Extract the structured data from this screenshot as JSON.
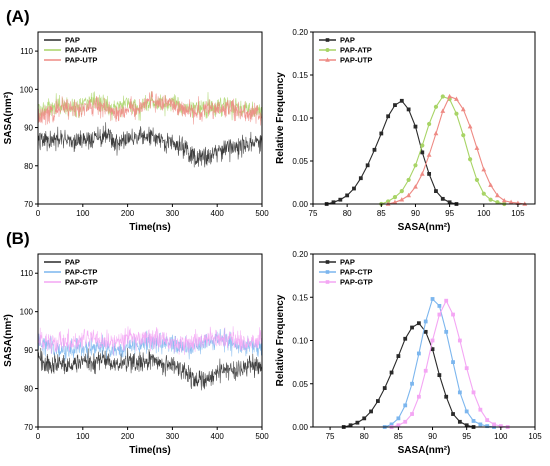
{
  "panel_labels": [
    "(A)",
    "(B)"
  ],
  "colors": {
    "PAP": "#2a2a2a",
    "PAP-ATP": "#a8d466",
    "PAP-UTP": "#ee8a84",
    "PAP-CTP": "#7cb6ee",
    "PAP-GTP": "#f4a6f4"
  },
  "chart_data": [
    {
      "id": "A-time",
      "panel": "(A)",
      "type": "line",
      "xlabel": "Time(ns)",
      "ylabel": "SASA(nm²)",
      "xlim": [
        0,
        500
      ],
      "ylim": [
        70,
        115
      ],
      "xticks": [
        0,
        100,
        200,
        300,
        400,
        500
      ],
      "yticks": [
        70,
        80,
        90,
        100,
        110
      ],
      "legend_position": "top-left",
      "series": [
        {
          "name": "PAP",
          "x": [
            0,
            25,
            50,
            75,
            100,
            125,
            150,
            175,
            200,
            225,
            250,
            275,
            300,
            325,
            350,
            375,
            400,
            425,
            450,
            475,
            500
          ],
          "y": [
            88,
            86,
            87,
            86,
            87,
            87,
            88,
            86,
            87,
            87,
            88,
            86,
            86,
            85,
            82,
            82,
            84,
            85,
            85,
            86,
            86
          ]
        },
        {
          "name": "PAP-ATP",
          "x": [
            0,
            25,
            50,
            75,
            100,
            125,
            150,
            175,
            200,
            225,
            250,
            275,
            300,
            325,
            350,
            375,
            400,
            425,
            450,
            475,
            500
          ],
          "y": [
            94,
            95,
            96,
            95,
            96,
            97,
            96,
            95,
            96,
            95,
            97,
            96,
            96,
            95,
            95,
            95,
            96,
            96,
            95,
            95,
            94
          ]
        },
        {
          "name": "PAP-UTP",
          "x": [
            0,
            25,
            50,
            75,
            100,
            125,
            150,
            175,
            200,
            225,
            250,
            275,
            300,
            325,
            350,
            375,
            400,
            425,
            450,
            475,
            500
          ],
          "y": [
            93,
            94,
            95,
            95,
            95,
            96,
            95,
            94,
            95,
            95,
            97,
            97,
            96,
            95,
            94,
            95,
            95,
            95,
            94,
            94,
            93
          ]
        }
      ]
    },
    {
      "id": "A-dist",
      "panel": "(A)",
      "type": "line",
      "xlabel": "SASA(nm²)",
      "ylabel": "Relative Frequency",
      "xlim": [
        75,
        107.5
      ],
      "ylim": [
        0,
        0.2
      ],
      "xticks": [
        75,
        80,
        85,
        90,
        95,
        100,
        105
      ],
      "yticks": [
        0.0,
        0.05,
        0.1,
        0.15,
        0.2
      ],
      "legend_position": "top-left",
      "series": [
        {
          "name": "PAP",
          "x": [
            77,
            78,
            79,
            80,
            81,
            82,
            83,
            84,
            85,
            86,
            87,
            88,
            89,
            90,
            91,
            92,
            93,
            94,
            95,
            96
          ],
          "y": [
            0.0,
            0.002,
            0.005,
            0.01,
            0.018,
            0.03,
            0.045,
            0.063,
            0.082,
            0.102,
            0.115,
            0.12,
            0.11,
            0.09,
            0.06,
            0.035,
            0.015,
            0.006,
            0.002,
            0.0
          ]
        },
        {
          "name": "PAP-ATP",
          "x": [
            85,
            86,
            87,
            88,
            89,
            90,
            91,
            92,
            93,
            94,
            95,
            96,
            97,
            98,
            99,
            100,
            101,
            102,
            103
          ],
          "y": [
            0.0,
            0.003,
            0.008,
            0.015,
            0.028,
            0.045,
            0.068,
            0.093,
            0.113,
            0.125,
            0.122,
            0.105,
            0.08,
            0.052,
            0.028,
            0.012,
            0.005,
            0.002,
            0.0
          ]
        },
        {
          "name": "PAP-UTP",
          "x": [
            86,
            87,
            88,
            89,
            90,
            91,
            92,
            93,
            94,
            95,
            96,
            97,
            98,
            99,
            100,
            101,
            102,
            103,
            104,
            105,
            106
          ],
          "y": [
            0.0,
            0.002,
            0.005,
            0.01,
            0.02,
            0.035,
            0.057,
            0.082,
            0.108,
            0.125,
            0.122,
            0.11,
            0.09,
            0.065,
            0.04,
            0.022,
            0.01,
            0.004,
            0.002,
            0.001,
            0.0
          ]
        }
      ]
    },
    {
      "id": "B-time",
      "panel": "(B)",
      "type": "line",
      "xlabel": "Time(ns)",
      "ylabel": "SASA(nm²)",
      "xlim": [
        0,
        500
      ],
      "ylim": [
        70,
        115
      ],
      "xticks": [
        0,
        100,
        200,
        300,
        400,
        500
      ],
      "yticks": [
        70,
        80,
        90,
        100,
        110
      ],
      "legend_position": "top-left",
      "series": [
        {
          "name": "PAP",
          "x": [
            0,
            25,
            50,
            75,
            100,
            125,
            150,
            175,
            200,
            225,
            250,
            275,
            300,
            325,
            350,
            375,
            400,
            425,
            450,
            475,
            500
          ],
          "y": [
            88,
            86,
            87,
            86,
            87,
            87,
            88,
            86,
            87,
            87,
            88,
            86,
            86,
            85,
            82,
            82,
            84,
            85,
            85,
            86,
            86
          ]
        },
        {
          "name": "PAP-CTP",
          "x": [
            0,
            25,
            50,
            75,
            100,
            125,
            150,
            175,
            200,
            225,
            250,
            275,
            300,
            325,
            350,
            375,
            400,
            425,
            450,
            475,
            500
          ],
          "y": [
            91,
            91,
            90,
            90,
            91,
            91,
            91,
            90,
            91,
            91,
            92,
            92,
            92,
            91,
            91,
            92,
            93,
            92,
            91,
            91,
            91
          ]
        },
        {
          "name": "PAP-GTP",
          "x": [
            0,
            25,
            50,
            75,
            100,
            125,
            150,
            175,
            200,
            225,
            250,
            275,
            300,
            325,
            350,
            375,
            400,
            425,
            450,
            475,
            500
          ],
          "y": [
            93,
            92,
            92,
            92,
            93,
            93,
            92,
            92,
            93,
            93,
            93,
            93,
            92,
            92,
            92,
            93,
            93,
            93,
            92,
            92,
            93
          ]
        }
      ]
    },
    {
      "id": "B-dist",
      "panel": "(B)",
      "type": "line",
      "xlabel": "SASA(nm²)",
      "ylabel": "Relative Frequency",
      "xlim": [
        72.5,
        105
      ],
      "ylim": [
        0,
        0.2
      ],
      "xticks": [
        75,
        80,
        85,
        90,
        95,
        100,
        105
      ],
      "yticks": [
        0.0,
        0.05,
        0.1,
        0.15,
        0.2
      ],
      "legend_position": "top-left",
      "series": [
        {
          "name": "PAP",
          "x": [
            77,
            78,
            79,
            80,
            81,
            82,
            83,
            84,
            85,
            86,
            87,
            88,
            89,
            90,
            91,
            92,
            93,
            94,
            95,
            96
          ],
          "y": [
            0.0,
            0.002,
            0.005,
            0.01,
            0.018,
            0.03,
            0.045,
            0.063,
            0.082,
            0.102,
            0.115,
            0.12,
            0.11,
            0.09,
            0.06,
            0.035,
            0.015,
            0.006,
            0.002,
            0.0
          ]
        },
        {
          "name": "PAP-CTP",
          "x": [
            83,
            84,
            85,
            86,
            87,
            88,
            89,
            90,
            91,
            92,
            93,
            94,
            95,
            96,
            97,
            98,
            99
          ],
          "y": [
            0.0,
            0.003,
            0.01,
            0.025,
            0.05,
            0.085,
            0.122,
            0.148,
            0.14,
            0.11,
            0.075,
            0.04,
            0.018,
            0.007,
            0.003,
            0.001,
            0.0
          ]
        },
        {
          "name": "PAP-GTP",
          "x": [
            84,
            85,
            86,
            87,
            88,
            89,
            90,
            91,
            92,
            93,
            94,
            95,
            96,
            97,
            98,
            99,
            100,
            101
          ],
          "y": [
            0.0,
            0.002,
            0.006,
            0.015,
            0.035,
            0.065,
            0.1,
            0.13,
            0.146,
            0.13,
            0.1,
            0.068,
            0.04,
            0.02,
            0.008,
            0.003,
            0.001,
            0.0
          ]
        }
      ]
    }
  ]
}
